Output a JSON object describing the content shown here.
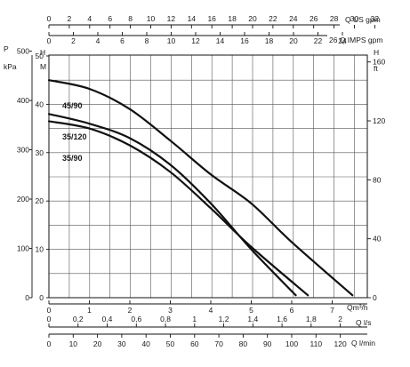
{
  "chart_data": {
    "type": "line",
    "x_unit": "Qm³/h",
    "y_unit": "H M",
    "xlim": [
      0,
      8
    ],
    "ylim": [
      0,
      50
    ],
    "grid": true,
    "series": [
      {
        "name": "45/90",
        "x": [
          0,
          1,
          2,
          3,
          4,
          5,
          6,
          7.5
        ],
        "y": [
          45,
          43.2,
          39,
          32.5,
          25.5,
          19.5,
          11.5,
          0.5
        ]
      },
      {
        "name": "35/120",
        "x": [
          0,
          1,
          2,
          3,
          4,
          5,
          6.1
        ],
        "y": [
          38,
          36,
          33,
          27.5,
          19.5,
          10,
          0.5
        ]
      },
      {
        "name": "35/90",
        "x": [
          0,
          1,
          2,
          3,
          4,
          5,
          6.4
        ],
        "y": [
          36.5,
          35,
          31.5,
          26,
          18.5,
          10.5,
          0.5
        ]
      }
    ],
    "left_outer_axis": {
      "label_line1": "P",
      "label_line2": "kPa",
      "ticks": [
        "0",
        "100",
        "200",
        "300",
        "400",
        "500"
      ]
    },
    "left_inner_axis": {
      "label_line1": "H",
      "label_line2": "M",
      "ticks": [
        "0",
        "10",
        "20",
        "30",
        "40",
        "50"
      ]
    },
    "right_axis": {
      "label_line1": "H",
      "label_line2": "ft",
      "ticks": [
        "0",
        "40",
        "80",
        "120",
        "160"
      ]
    },
    "top_axis_1": {
      "label": "Q US gpm",
      "ticks": [
        "0",
        "2",
        "4",
        "6",
        "8",
        "10",
        "12",
        "14",
        "16",
        "18",
        "20",
        "22",
        "24",
        "26",
        "28",
        "30",
        "32"
      ]
    },
    "top_axis_2": {
      "label": "26 Q IMPS gpm",
      "ticks": [
        "0",
        "2",
        "4",
        "6",
        "8",
        "10",
        "12",
        "14",
        "16",
        "18",
        "20",
        "22",
        "24"
      ]
    },
    "bottom_axis_1": {
      "label": "Qm³/h",
      "ticks": [
        "0",
        "1",
        "2",
        "3",
        "4",
        "5",
        "6",
        "7"
      ]
    },
    "bottom_axis_2": {
      "label": "Q l/s",
      "ticks": [
        "0",
        "0,2",
        "0,4",
        "0,6",
        "0,8",
        "1",
        "1,2",
        "1,4",
        "1,6",
        "1,8",
        "2"
      ]
    },
    "bottom_axis_3": {
      "label": "Q l/min",
      "ticks": [
        "0",
        "10",
        "20",
        "30",
        "40",
        "50",
        "60",
        "70",
        "80",
        "90",
        "100",
        "110",
        "120"
      ]
    }
  }
}
